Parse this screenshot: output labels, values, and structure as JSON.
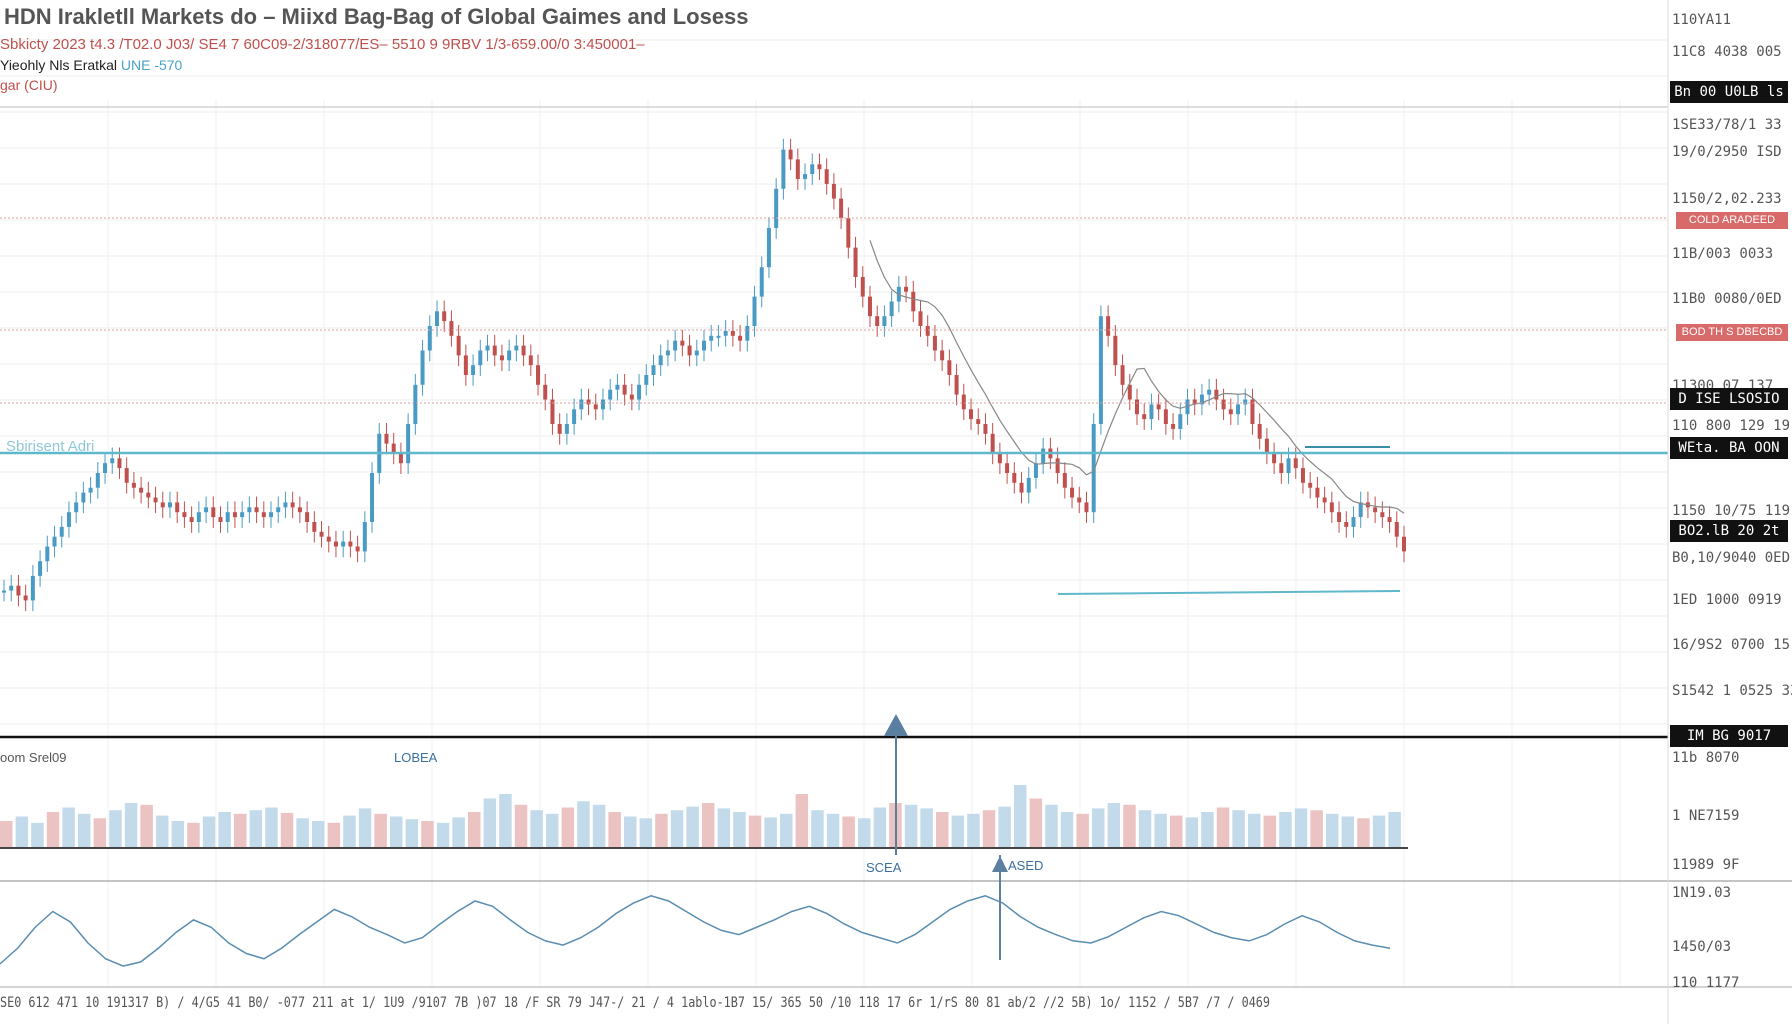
{
  "header": {
    "title": "HDN Irakletll Markets do – Miixd Bag-Bag of Global Gaimes and Losess",
    "subtitle": "Sbkicty 2023 t4.3 /T02.0 J03/ SE4 7 60C09-2/318077/ES– 5510 9 9RBV 1/3-659.00/0 3:450001–",
    "legend_line": "Yieohly Nls Eratkal",
    "legend_accent": "UNE -570",
    "legend_line2": "gar (CIU)"
  },
  "price_labels": [
    {
      "text": "110YA11"
    },
    {
      "text": "11C8 4038 005"
    },
    {
      "text": "1SE33/78/1 33"
    },
    {
      "text": "19/0/2950 ISD"
    },
    {
      "text": "1150/2,02.233"
    },
    {
      "text": "11B/003 0033"
    },
    {
      "text": "11B0 0080/0ED"
    },
    {
      "text": "11300 07 137"
    },
    {
      "text": "110 800 129 19"
    },
    {
      "text": "1150 10/75 119"
    },
    {
      "text": "B0,10/9040 0ED"
    },
    {
      "text": "1ED 1000 0919"
    },
    {
      "text": "16/9S2 0700 15"
    },
    {
      "text": "S1542 1 0525 33"
    }
  ],
  "badges": {
    "b1": "Bn 00 U0LB ls",
    "r1": "COLD ARADEED",
    "r2": "BOD TH S DBECBD",
    "b2": "D ISE LSOSIO",
    "b3": "WEta. BA OON",
    "b4": "BO2.lB 20 2t",
    "b5": "IM BG 9017"
  },
  "panel_labels": {
    "volume_legend": "oom Srel09",
    "volume_tag": "LOBEA",
    "support_label": "Sbirisent Adri",
    "vol_axis": [
      "11b 8070",
      "1 NE7159",
      "11989 9F"
    ],
    "marker_1": "SCEA",
    "marker_2": "ASED",
    "osc_axis": [
      "1N19.03",
      "1450/03",
      "110 1177"
    ]
  },
  "x_axis_text": "SE0 612 471 10 191317 B) / 4/G5 41 B0/ -077 211 at 1/ 1U9 /9107 7B )07 18 /F SR 79 J47-/ 21 / 4 1ablo-1B7 15/ 365 50 /10 118 17 6r 1/rS 80 81 ab/2 //2 5B) 1o/ 1152 / 5B7 /7 / 0469",
  "colors": {
    "up": "#4a9bc4",
    "down": "#c0504d",
    "support": "#5fb8cc",
    "ma": "#888888",
    "osc": "#5a8db0"
  },
  "chart_data": {
    "type": "candlestick",
    "title": "HDN Irakletll Markets do – Miixd Bag-Bag of Global Gaimes and Losess",
    "ylim": [
      0,
      100
    ],
    "close": [
      6,
      7,
      5,
      4,
      9,
      12,
      15,
      17,
      19,
      22,
      24,
      26,
      27,
      30,
      32,
      33,
      31,
      28,
      27,
      26,
      25,
      24,
      23,
      24,
      22,
      21,
      20,
      22,
      23,
      21,
      20,
      22,
      21,
      22,
      23,
      22,
      21,
      22,
      23,
      24,
      23,
      22,
      20,
      18,
      17,
      16,
      15,
      16,
      15,
      14,
      20,
      30,
      38,
      36,
      34,
      32,
      40,
      48,
      55,
      60,
      63,
      61,
      58,
      54,
      50,
      52,
      55,
      56,
      54,
      53,
      55,
      56,
      54,
      52,
      48,
      45,
      40,
      38,
      40,
      43,
      45,
      44,
      43,
      45,
      47,
      48,
      46,
      45,
      48,
      50,
      52,
      54,
      55,
      57,
      56,
      54,
      55,
      57,
      58,
      58,
      59,
      58,
      57,
      60,
      66,
      72,
      80,
      88,
      96,
      94,
      90,
      91,
      93,
      92,
      89,
      86,
      82,
      76,
      70,
      66,
      62,
      60,
      62,
      65,
      68,
      67,
      63,
      60,
      58,
      55,
      53,
      50,
      46,
      43,
      41,
      40,
      38,
      34,
      32,
      30,
      28,
      26,
      29,
      32,
      35,
      33,
      30,
      27,
      25,
      24,
      22,
      40,
      62,
      58,
      52,
      48,
      45,
      42,
      41,
      44,
      43,
      40,
      39,
      42,
      45,
      44,
      46,
      47,
      45,
      43,
      42,
      44,
      45,
      40,
      37,
      34,
      32,
      30,
      33,
      31,
      28,
      27,
      25,
      24,
      22,
      20,
      19,
      21,
      24,
      23,
      22,
      21,
      20,
      17,
      14
    ]
  },
  "volume_data": [
    30,
    35,
    28,
    40,
    45,
    38,
    33,
    42,
    50,
    48,
    36,
    30,
    28,
    35,
    40,
    38,
    42,
    45,
    39,
    33,
    30,
    28,
    36,
    44,
    38,
    35,
    32,
    30,
    28,
    34,
    40,
    55,
    60,
    48,
    42,
    38,
    45,
    52,
    48,
    40,
    35,
    33,
    38,
    42,
    46,
    50,
    44,
    40,
    36,
    34,
    38,
    60,
    42,
    38,
    35,
    33,
    45,
    50,
    48,
    44,
    40,
    36,
    38,
    42,
    46,
    70,
    55,
    48,
    40,
    38,
    44,
    50,
    48,
    42,
    38,
    36,
    34,
    40,
    45,
    42,
    38,
    36,
    40,
    44,
    42,
    38,
    35,
    33,
    36,
    40
  ],
  "oscillator_data": [
    20,
    35,
    55,
    70,
    60,
    40,
    25,
    18,
    22,
    35,
    50,
    62,
    55,
    40,
    30,
    25,
    35,
    48,
    60,
    72,
    65,
    55,
    48,
    40,
    45,
    58,
    70,
    80,
    75,
    62,
    50,
    42,
    38,
    45,
    55,
    68,
    78,
    85,
    80,
    70,
    60,
    52,
    48,
    55,
    62,
    70,
    75,
    68,
    58,
    50,
    45,
    40,
    48,
    60,
    72,
    80,
    85,
    78,
    65,
    55,
    48,
    42,
    40,
    46,
    55,
    64,
    70,
    66,
    58,
    50,
    45,
    42,
    48,
    58,
    66,
    60,
    50,
    42,
    38,
    35
  ]
}
